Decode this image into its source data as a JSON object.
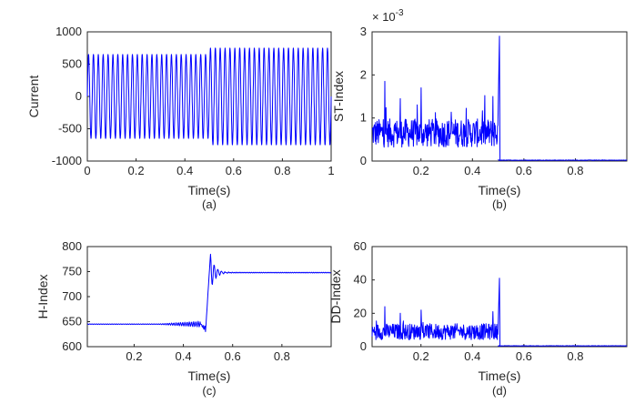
{
  "colors": {
    "trace": "#0000ff",
    "axis": "#262626"
  },
  "chart_data": [
    {
      "type": "line",
      "id": "a",
      "caption": "(a)",
      "xlabel": "Time(s)",
      "ylabel": "Current",
      "xlim": [
        0,
        1
      ],
      "ylim": [
        -1000,
        1000
      ],
      "xticks": [
        0,
        0.2,
        0.4,
        0.6,
        0.8,
        1
      ],
      "xtick_labels": [
        "0",
        "0.2",
        "0.4",
        "0.6",
        "0.8",
        "1"
      ],
      "yticks": [
        1000,
        500,
        0,
        -500,
        -1000
      ],
      "ytick_labels": [
        "1000",
        "500",
        "0",
        "-500",
        "-1000"
      ],
      "exponent_label": "",
      "series": [
        {
          "name": "Current",
          "description": "sinusoid ~50 Hz, amplitude ~650 for t<0.5 s, ~750 after 0.5 s",
          "frequency_hz": 50,
          "segments": [
            {
              "t_start": 0,
              "t_end": 0.5,
              "amplitude": 650
            },
            {
              "t_start": 0.5,
              "t_end": 1,
              "amplitude": 750
            }
          ]
        }
      ]
    },
    {
      "type": "line",
      "id": "b",
      "caption": "(b)",
      "xlabel": "Time(s)",
      "ylabel": "ST-Index",
      "xlim": [
        0.01,
        1
      ],
      "ylim": [
        0,
        3
      ],
      "xticks": [
        0.2,
        0.4,
        0.6,
        0.8
      ],
      "xtick_labels": [
        "0.2",
        "0.4",
        "0.6",
        "0.8"
      ],
      "yticks": [
        3,
        2,
        1,
        0
      ],
      "ytick_labels": [
        "3",
        "2",
        "1",
        "0"
      ],
      "exponent_label": "× 10",
      "exponent_power": "-3",
      "series": [
        {
          "name": "ST-Index",
          "noisy_until": 0.5,
          "pre_mean": 0.65,
          "pre_noise": 0.55,
          "spikes": [
            [
              0.06,
              1.85
            ],
            [
              0.2,
              1.7
            ],
            [
              0.12,
              1.45
            ],
            [
              0.48,
              1.5
            ],
            [
              0.505,
              2.9
            ]
          ],
          "post_value": 0.02
        }
      ]
    },
    {
      "type": "line",
      "id": "c",
      "caption": "(c)",
      "xlabel": "Time(s)",
      "ylabel": "H-Index",
      "xlim": [
        0.01,
        1
      ],
      "ylim": [
        600,
        800
      ],
      "xticks": [
        0.2,
        0.4,
        0.6,
        0.8
      ],
      "xtick_labels": [
        "0.2",
        "0.4",
        "0.6",
        "0.8"
      ],
      "yticks": [
        800,
        750,
        700,
        650,
        600
      ],
      "ytick_labels": [
        "800",
        "750",
        "700",
        "650",
        "600"
      ],
      "exponent_label": "",
      "series": [
        {
          "name": "H-Index",
          "pre_value": 645,
          "post_value": 748,
          "transition_start": 0.49,
          "transition_end": 0.51,
          "overshoot_peak": 785,
          "dip_before_step": 630
        }
      ]
    },
    {
      "type": "line",
      "id": "d",
      "caption": "(d)",
      "xlabel": "Time(s)",
      "ylabel": "DD-Index",
      "xlim": [
        0.01,
        1
      ],
      "ylim": [
        0,
        60
      ],
      "xticks": [
        0.2,
        0.4,
        0.6,
        0.8
      ],
      "xtick_labels": [
        "0.2",
        "0.4",
        "0.6",
        "0.8"
      ],
      "yticks": [
        60,
        40,
        20,
        0
      ],
      "ytick_labels": [
        "60",
        "40",
        "20",
        "0"
      ],
      "exponent_label": "",
      "series": [
        {
          "name": "DD-Index",
          "noisy_until": 0.5,
          "pre_mean": 9,
          "pre_noise": 8,
          "spikes": [
            [
              0.06,
              24
            ],
            [
              0.2,
              22
            ],
            [
              0.12,
              20
            ],
            [
              0.48,
              21
            ],
            [
              0.505,
              41
            ]
          ],
          "post_value": 0.5
        }
      ]
    }
  ]
}
